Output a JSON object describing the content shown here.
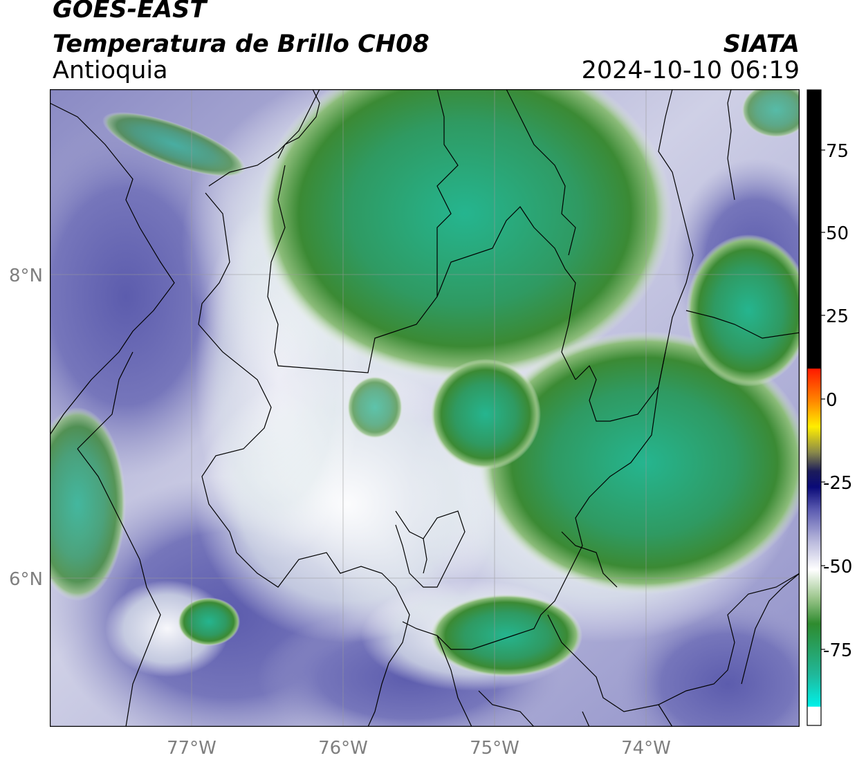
{
  "header": {
    "satellite": "GOES-EAST",
    "product": "Temperatura de Brillo CH08",
    "region": "Antioquia",
    "organization": "SIATA",
    "datetime": "2024-10-10 06:19"
  },
  "map": {
    "x_ticks": [
      "77°W",
      "76°W",
      "75°W",
      "74°W"
    ],
    "y_ticks": [
      "8°N",
      "6°N"
    ],
    "lon_range": [
      -77.95,
      -73.05
    ],
    "lat_range": [
      5.05,
      9.25
    ],
    "grid": true
  },
  "colorbar": {
    "ticks": [
      "75",
      "50",
      "25",
      "0",
      "-25",
      "-50",
      "-75"
    ],
    "range": [
      -95,
      90
    ],
    "colors": {
      "warm": "#000000",
      "red": "#ff1a00",
      "yellow": "#ffee00",
      "navy": "#0a0a78",
      "lavender": "#9d9dcb",
      "white": "#ffffff",
      "green": "#2e8b2e",
      "teal": "#20b89a",
      "cyan": "#00f0e8"
    }
  }
}
